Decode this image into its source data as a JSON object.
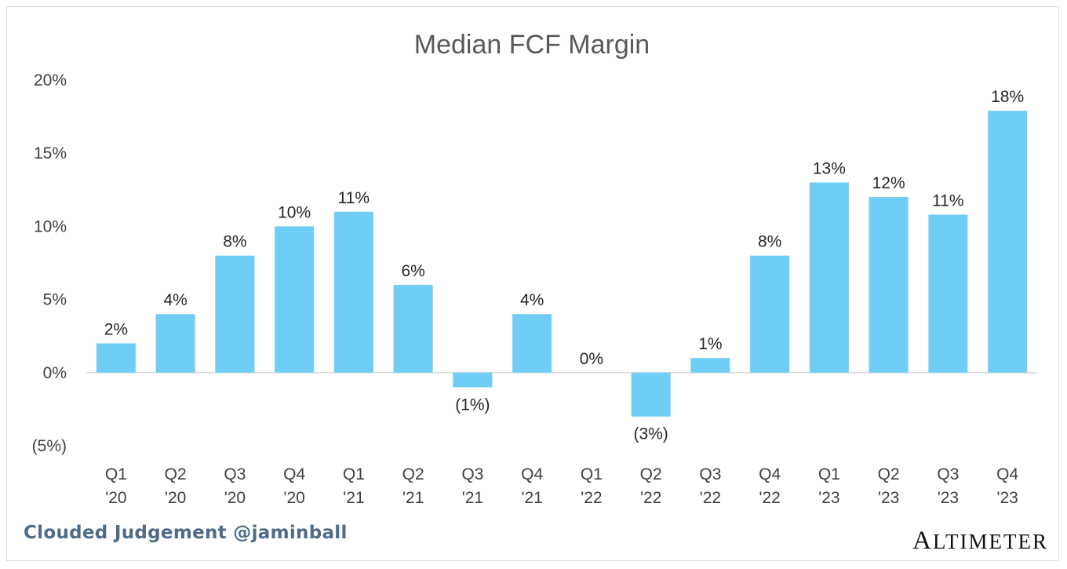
{
  "chart_data": {
    "type": "bar",
    "title": "Median FCF Margin",
    "categories": [
      [
        "Q1",
        "'20"
      ],
      [
        "Q2",
        "'20"
      ],
      [
        "Q3",
        "'20"
      ],
      [
        "Q4",
        "'20"
      ],
      [
        "Q1",
        "'21"
      ],
      [
        "Q2",
        "'21"
      ],
      [
        "Q3",
        "'21"
      ],
      [
        "Q4",
        "'21"
      ],
      [
        "Q1",
        "'22"
      ],
      [
        "Q2",
        "'22"
      ],
      [
        "Q3",
        "'22"
      ],
      [
        "Q4",
        "'22"
      ],
      [
        "Q1",
        "'23"
      ],
      [
        "Q2",
        "'23"
      ],
      [
        "Q3",
        "'23"
      ],
      [
        "Q4",
        "'23"
      ]
    ],
    "values": [
      2,
      4,
      8,
      10,
      11,
      6,
      -1,
      4,
      0,
      -3,
      1,
      8,
      13,
      12,
      10.8,
      17.9
    ],
    "data_labels": [
      "2%",
      "4%",
      "8%",
      "10%",
      "11%",
      "6%",
      "(1%)",
      "4%",
      "0%",
      "(3%)",
      "1%",
      "8%",
      "13%",
      "12%",
      "11%",
      "18%"
    ],
    "y_ticks": [
      -5,
      0,
      5,
      10,
      15,
      20
    ],
    "y_tick_labels": [
      "(5%)",
      "0%",
      "5%",
      "10%",
      "15%",
      "20%"
    ],
    "ylim": [
      -5,
      20
    ],
    "xlabel": "",
    "ylabel": "",
    "grid": false,
    "bar_color": "#70cdf5"
  },
  "footer": {
    "credit": "Clouded Judgement @jaminball",
    "brand": "Altimeter"
  }
}
